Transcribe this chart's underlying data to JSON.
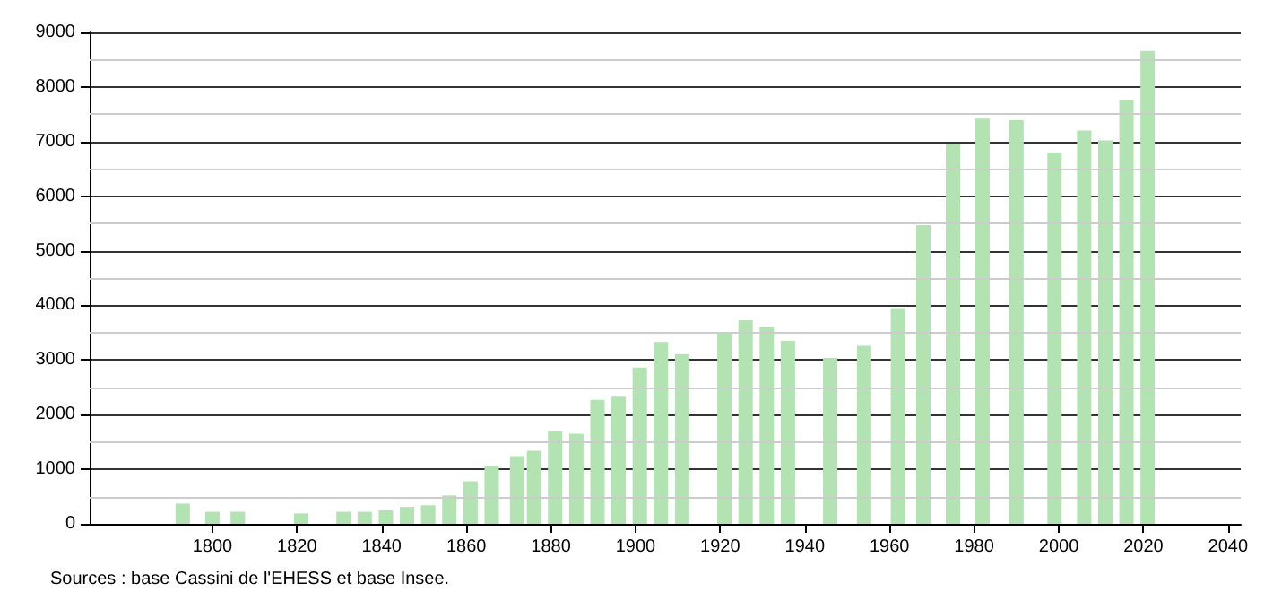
{
  "chart_data": {
    "type": "bar",
    "color": "#b3e2b3",
    "x": [
      1793,
      1800,
      1806,
      1821,
      1831,
      1836,
      1841,
      1846,
      1851,
      1856,
      1861,
      1866,
      1872,
      1876,
      1881,
      1886,
      1891,
      1896,
      1901,
      1906,
      1911,
      1921,
      1926,
      1931,
      1936,
      1946,
      1954,
      1962,
      1968,
      1975,
      1982,
      1990,
      1999,
      2006,
      2011,
      2016,
      2021
    ],
    "values": [
      370,
      220,
      220,
      190,
      220,
      220,
      250,
      310,
      340,
      520,
      780,
      1050,
      1240,
      1340,
      1700,
      1650,
      2270,
      2330,
      2860,
      3330,
      3110,
      3480,
      3730,
      3600,
      3350,
      3040,
      3260,
      3950,
      5470,
      6960,
      7420,
      7390,
      6800,
      7200,
      7020,
      7760,
      8660
    ],
    "xlim": [
      1771,
      2043
    ],
    "xticks": [
      1800,
      1820,
      1840,
      1860,
      1880,
      1900,
      1920,
      1940,
      1960,
      1980,
      2000,
      2020,
      2040
    ],
    "ylim": [
      0,
      9000
    ],
    "yticks": [
      0,
      1000,
      2000,
      3000,
      4000,
      5000,
      6000,
      7000,
      8000,
      9000
    ],
    "grid": "y",
    "annotations": [
      "Sources : base Cassini de l'EHESS et base Insee."
    ]
  }
}
